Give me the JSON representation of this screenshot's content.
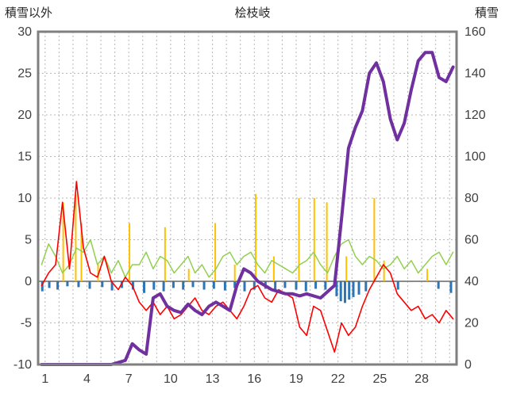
{
  "header": {
    "left_label": "積雪以外",
    "title": "桧枝岐",
    "right_label": "積雪"
  },
  "colors": {
    "frame": "#7f7f7f",
    "grid": "#b7b7b7",
    "zero_line": "#8c8c8c",
    "tick_text": "#404040",
    "red_series": "#ff0000",
    "green_series": "#92d050",
    "purple_series": "#7030a0",
    "orange_spikes": "#ffc000",
    "blue_bars": "#2e75b6"
  },
  "chart_data": {
    "type": "line",
    "title": "桧枝岐",
    "left_axis": {
      "label": "積雪以外",
      "min": -10,
      "max": 30,
      "ticks": [
        30,
        25,
        20,
        15,
        10,
        5,
        0,
        -5,
        -10
      ]
    },
    "right_axis": {
      "label": "積雪",
      "min": 0,
      "max": 160,
      "ticks": [
        160,
        140,
        120,
        100,
        80,
        60,
        40,
        20,
        0
      ]
    },
    "x_range": [
      0.5,
      30.5
    ],
    "x_ticks": [
      1,
      4,
      7,
      10,
      13,
      16,
      19,
      22,
      25,
      28
    ],
    "grid": "dashed vertical per day, dashed horizontal per 5 (left axis), solid zero line",
    "series": [
      {
        "name": "green-series",
        "axis": "left",
        "color": "#92d050",
        "width": 1.5,
        "x_start": 0.75,
        "x_step": 0.5,
        "values": [
          2.0,
          4.5,
          3.0,
          1.0,
          2.0,
          4.0,
          3.5,
          5.0,
          2.0,
          3.0,
          1.0,
          2.5,
          0.5,
          2.0,
          2.0,
          3.5,
          1.5,
          3.0,
          2.5,
          1.0,
          2.0,
          3.0,
          1.0,
          2.0,
          0.5,
          1.5,
          3.0,
          3.5,
          2.0,
          3.0,
          3.5,
          2.0,
          1.0,
          2.5,
          2.0,
          1.5,
          1.0,
          2.0,
          2.5,
          3.5,
          2.0,
          1.0,
          3.0,
          4.5,
          5.0,
          3.0,
          2.0,
          3.0,
          2.5,
          1.5,
          2.0,
          3.0,
          1.5,
          2.5,
          1.0,
          2.0,
          3.0,
          3.5,
          2.0,
          3.5
        ]
      },
      {
        "name": "red-series",
        "axis": "left",
        "color": "#ff0000",
        "width": 1.6,
        "x_start": 0.75,
        "x_step": 0.5,
        "values": [
          -0.5,
          1.0,
          2.0,
          9.5,
          1.5,
          12.0,
          4.0,
          1.0,
          0.5,
          3.0,
          0.0,
          -1.0,
          0.5,
          -0.5,
          -2.5,
          -3.5,
          -2.5,
          -4.0,
          -3.0,
          -4.5,
          -4.0,
          -3.0,
          -2.0,
          -3.5,
          -4.0,
          -3.0,
          -2.5,
          -3.5,
          -4.5,
          -3.0,
          -1.0,
          -0.5,
          -2.0,
          -2.5,
          -1.0,
          -1.5,
          -2.0,
          -5.5,
          -6.5,
          -3.0,
          -3.5,
          -6.0,
          -8.5,
          -5.0,
          -6.5,
          -5.5,
          -3.0,
          -1.0,
          0.5,
          2.0,
          1.0,
          -1.5,
          -2.5,
          -3.5,
          -3.0,
          -4.5,
          -4.0,
          -5.0,
          -3.5,
          -4.5
        ]
      },
      {
        "name": "snow-depth-series",
        "axis": "right",
        "color": "#7030a0",
        "width": 4,
        "x_start": 0.75,
        "x_step": 0.5,
        "values": [
          0,
          0,
          0,
          0,
          0,
          0,
          0,
          0,
          0,
          0,
          0,
          1,
          2,
          10,
          7,
          5,
          32,
          34,
          28,
          26,
          25,
          29,
          26,
          24,
          28,
          30,
          28,
          26,
          38,
          46,
          44,
          40,
          38,
          36,
          35,
          34,
          34,
          33,
          34,
          33,
          32,
          35,
          38,
          70,
          104,
          114,
          122,
          140,
          145,
          136,
          118,
          108,
          116,
          132,
          146,
          150,
          150,
          138,
          136,
          143
        ]
      }
    ],
    "precip_spikes": {
      "name": "orange-spikes",
      "axis": "left",
      "color": "#ffc000",
      "points": [
        [
          2.3,
          9.5
        ],
        [
          3.2,
          10.5
        ],
        [
          3.6,
          7.0
        ],
        [
          4.8,
          2.0
        ],
        [
          7.05,
          7.0
        ],
        [
          9.6,
          6.5
        ],
        [
          11.3,
          1.5
        ],
        [
          13.2,
          7.0
        ],
        [
          14.6,
          2.0
        ],
        [
          16.1,
          10.5
        ],
        [
          17.4,
          3.0
        ],
        [
          19.2,
          10.0
        ],
        [
          20.3,
          10.0
        ],
        [
          21.2,
          9.5
        ],
        [
          22.6,
          3.0
        ],
        [
          24.6,
          10.0
        ],
        [
          25.3,
          2.5
        ],
        [
          28.4,
          1.5
        ]
      ]
    },
    "negative_bars": {
      "name": "blue-bars",
      "axis": "left",
      "color": "#2e75b6",
      "points": [
        [
          0.8,
          -1.2
        ],
        [
          1.3,
          -0.8
        ],
        [
          1.9,
          -1.0
        ],
        [
          2.6,
          -0.6
        ],
        [
          3.4,
          -0.7
        ],
        [
          4.2,
          -0.9
        ],
        [
          5.1,
          -0.7
        ],
        [
          5.8,
          -1.1
        ],
        [
          6.5,
          -0.8
        ],
        [
          7.3,
          -1.0
        ],
        [
          8.1,
          -1.4
        ],
        [
          8.8,
          -1.0
        ],
        [
          9.5,
          -1.2
        ],
        [
          10.2,
          -0.8
        ],
        [
          10.9,
          -1.0
        ],
        [
          11.6,
          -0.7
        ],
        [
          12.4,
          -1.0
        ],
        [
          13.1,
          -0.9
        ],
        [
          13.9,
          -1.1
        ],
        [
          14.6,
          -0.8
        ],
        [
          15.3,
          -1.2
        ],
        [
          16.0,
          -1.0
        ],
        [
          16.8,
          -0.9
        ],
        [
          17.5,
          -1.1
        ],
        [
          18.2,
          -0.8
        ],
        [
          19.0,
          -1.0
        ],
        [
          19.7,
          -1.2
        ],
        [
          20.4,
          -0.9
        ],
        [
          21.1,
          -1.0
        ],
        [
          21.9,
          -1.8
        ],
        [
          22.2,
          -2.4
        ],
        [
          22.5,
          -2.6
        ],
        [
          22.8,
          -2.2
        ],
        [
          23.1,
          -1.9
        ],
        [
          23.5,
          -1.6
        ],
        [
          24.0,
          -1.2
        ],
        [
          26.3,
          -1.0
        ],
        [
          29.2,
          -0.9
        ],
        [
          30.1,
          -1.4
        ]
      ]
    }
  }
}
